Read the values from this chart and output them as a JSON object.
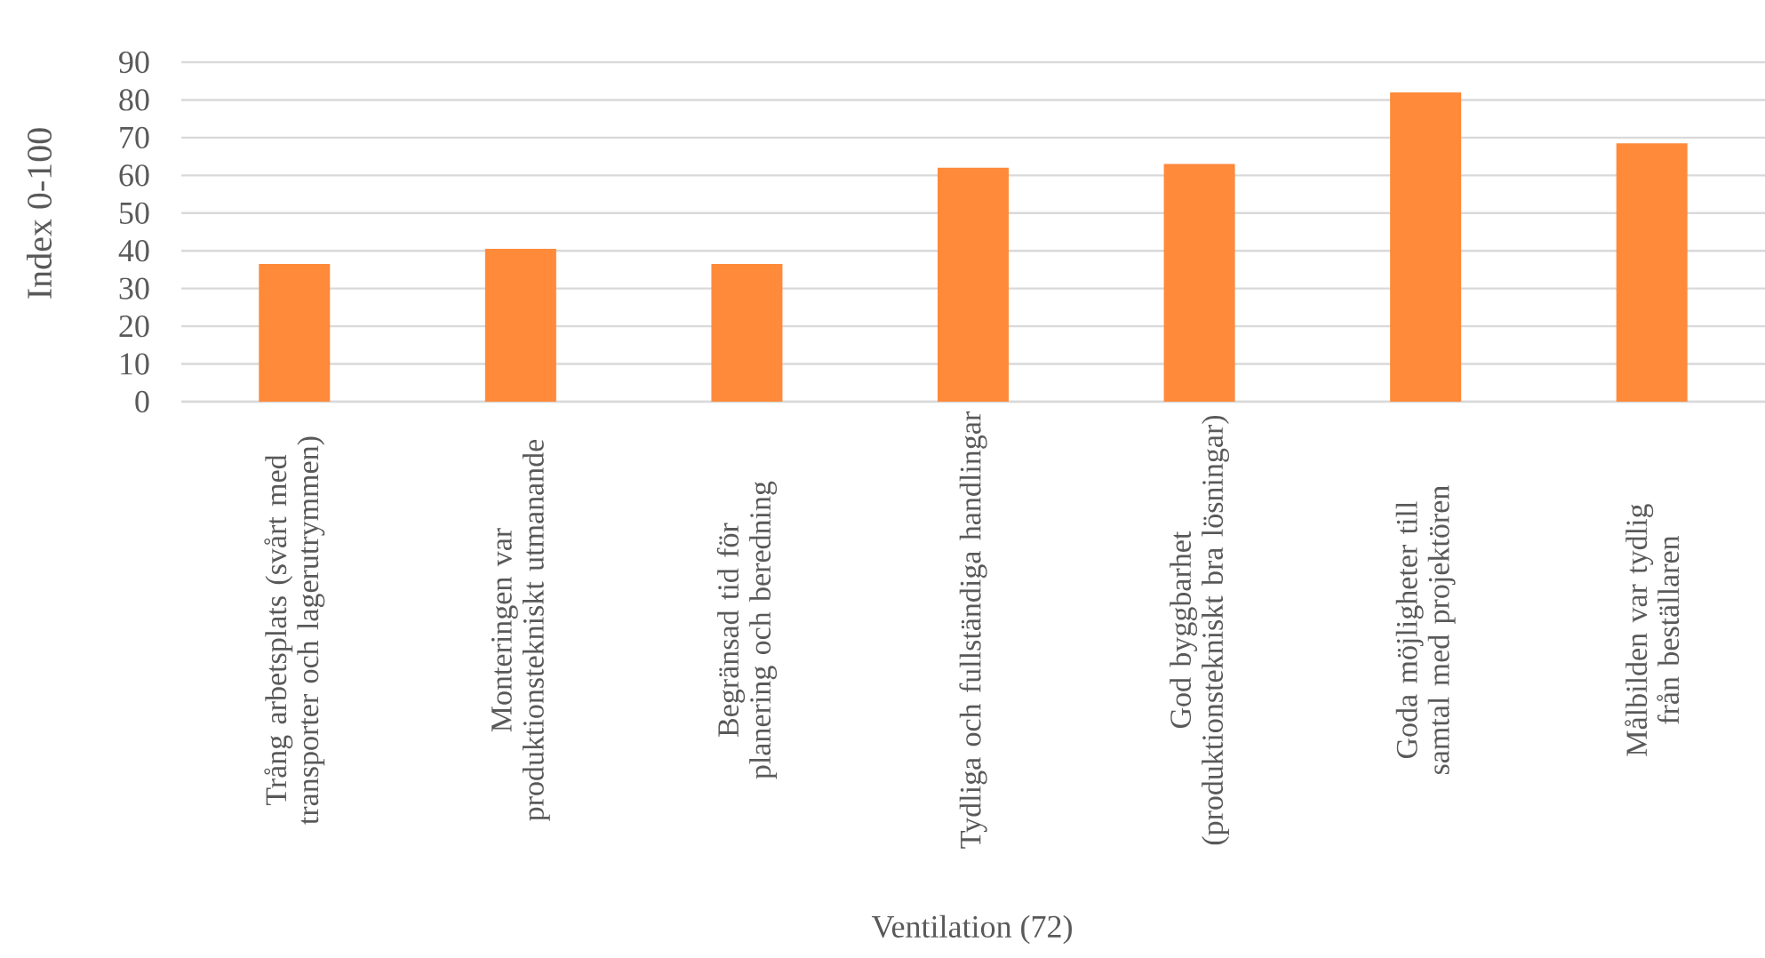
{
  "chart_data": {
    "type": "bar",
    "xlabel": "Ventilation (72)",
    "ylabel": "Index 0-100",
    "categories": [
      "Trång arbetsplats (svårt med transporter och lagerutrymmen)",
      "Monteringen var produktionstekniskt utmanande",
      "Begränsad tid för planering och beredning",
      "Tydliga och fullständiga handlingar",
      "God byggbarhet (produktionstekniskt bra lösningar)",
      "Goda möjligheter till samtal med projektören",
      "Målbilden var tydlig från beställaren"
    ],
    "values": [
      36.5,
      40.5,
      36.5,
      62,
      63,
      82,
      68.5
    ],
    "color": "#fe8a3a",
    "ylim": [
      0,
      90
    ],
    "yticks": [
      0,
      10,
      20,
      30,
      40,
      50,
      60,
      70,
      80,
      90
    ],
    "grid": "y"
  }
}
